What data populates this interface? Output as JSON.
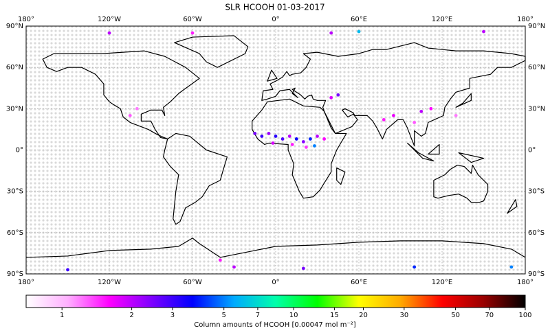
{
  "map": {
    "title": "SLR HCOOH 01-03-2017",
    "lon_ticks": [
      {
        "value": -180,
        "label": "180°"
      },
      {
        "value": -120,
        "label": "120°W"
      },
      {
        "value": -60,
        "label": "60°W"
      },
      {
        "value": 0,
        "label": "0°"
      },
      {
        "value": 60,
        "label": "60°E"
      },
      {
        "value": 120,
        "label": "120°E"
      },
      {
        "value": 180,
        "label": "180°"
      }
    ],
    "lat_ticks": [
      {
        "value": 90,
        "label": "90°N"
      },
      {
        "value": 60,
        "label": "60°N"
      },
      {
        "value": 30,
        "label": "30°N"
      },
      {
        "value": 0,
        "label": "0°"
      },
      {
        "value": -30,
        "label": "30°S"
      },
      {
        "value": -60,
        "label": "60°S"
      },
      {
        "value": -90,
        "label": "90°S"
      }
    ],
    "colorbar": {
      "label": "Column amounts of HCOOH [0.00047 mol m⁻²]",
      "log": true,
      "lim": [
        0.7,
        100
      ],
      "ticks": [
        1,
        2,
        3,
        5,
        7,
        10,
        15,
        20,
        30,
        50,
        70,
        100
      ],
      "colors": [
        "#ffffff",
        "#ffb0ff",
        "#ff00ff",
        "#8000ff",
        "#0000ff",
        "#00aaff",
        "#00ffaa",
        "#00ff00",
        "#ffff00",
        "#ffaa00",
        "#ff0000",
        "#990000",
        "#000000"
      ]
    },
    "points": [
      {
        "lon": -15,
        "lat": 12,
        "value": 2.5
      },
      {
        "lon": -10,
        "lat": 10,
        "value": 3
      },
      {
        "lon": -5,
        "lat": 12,
        "value": 2.2
      },
      {
        "lon": 0,
        "lat": 10,
        "value": 3.2
      },
      {
        "lon": 5,
        "lat": 8,
        "value": 2.8
      },
      {
        "lon": 10,
        "lat": 10,
        "value": 2
      },
      {
        "lon": 15,
        "lat": 8,
        "value": 3.5
      },
      {
        "lon": 20,
        "lat": 6,
        "value": 2.4
      },
      {
        "lon": 25,
        "lat": 8,
        "value": 4
      },
      {
        "lon": 30,
        "lat": 10,
        "value": 2
      },
      {
        "lon": 35,
        "lat": 8,
        "value": 1.6
      },
      {
        "lon": -2,
        "lat": 5,
        "value": 1.8
      },
      {
        "lon": 12,
        "lat": 4,
        "value": 1.5
      },
      {
        "lon": 22,
        "lat": 2,
        "value": 1.4
      },
      {
        "lon": 28,
        "lat": 3,
        "value": 5
      },
      {
        "lon": 78,
        "lat": 22,
        "value": 1.5
      },
      {
        "lon": 85,
        "lat": 25,
        "value": 1.7
      },
      {
        "lon": 105,
        "lat": 28,
        "value": 2
      },
      {
        "lon": 112,
        "lat": 30,
        "value": 1.6
      },
      {
        "lon": 100,
        "lat": 20,
        "value": 1.3
      },
      {
        "lon": 40,
        "lat": 38,
        "value": 1.8
      },
      {
        "lon": 45,
        "lat": 40,
        "value": 2.5
      },
      {
        "lon": -100,
        "lat": 30,
        "value": 1.2
      },
      {
        "lon": -105,
        "lat": 25,
        "value": 1.3
      },
      {
        "lon": -120,
        "lat": 85,
        "value": 2
      },
      {
        "lon": -60,
        "lat": 85,
        "value": 1.5
      },
      {
        "lon": 40,
        "lat": 85,
        "value": 2
      },
      {
        "lon": 60,
        "lat": 86,
        "value": 6
      },
      {
        "lon": 150,
        "lat": 86,
        "value": 2
      },
      {
        "lon": -150,
        "lat": -87,
        "value": 3
      },
      {
        "lon": -30,
        "lat": -85,
        "value": 2
      },
      {
        "lon": 20,
        "lat": -86,
        "value": 2.5
      },
      {
        "lon": 100,
        "lat": -85,
        "value": 4
      },
      {
        "lon": 170,
        "lat": -85,
        "value": 5
      },
      {
        "lon": 130,
        "lat": 25,
        "value": 1.2
      },
      {
        "lon": -40,
        "lat": -80,
        "value": 1.5
      }
    ]
  }
}
